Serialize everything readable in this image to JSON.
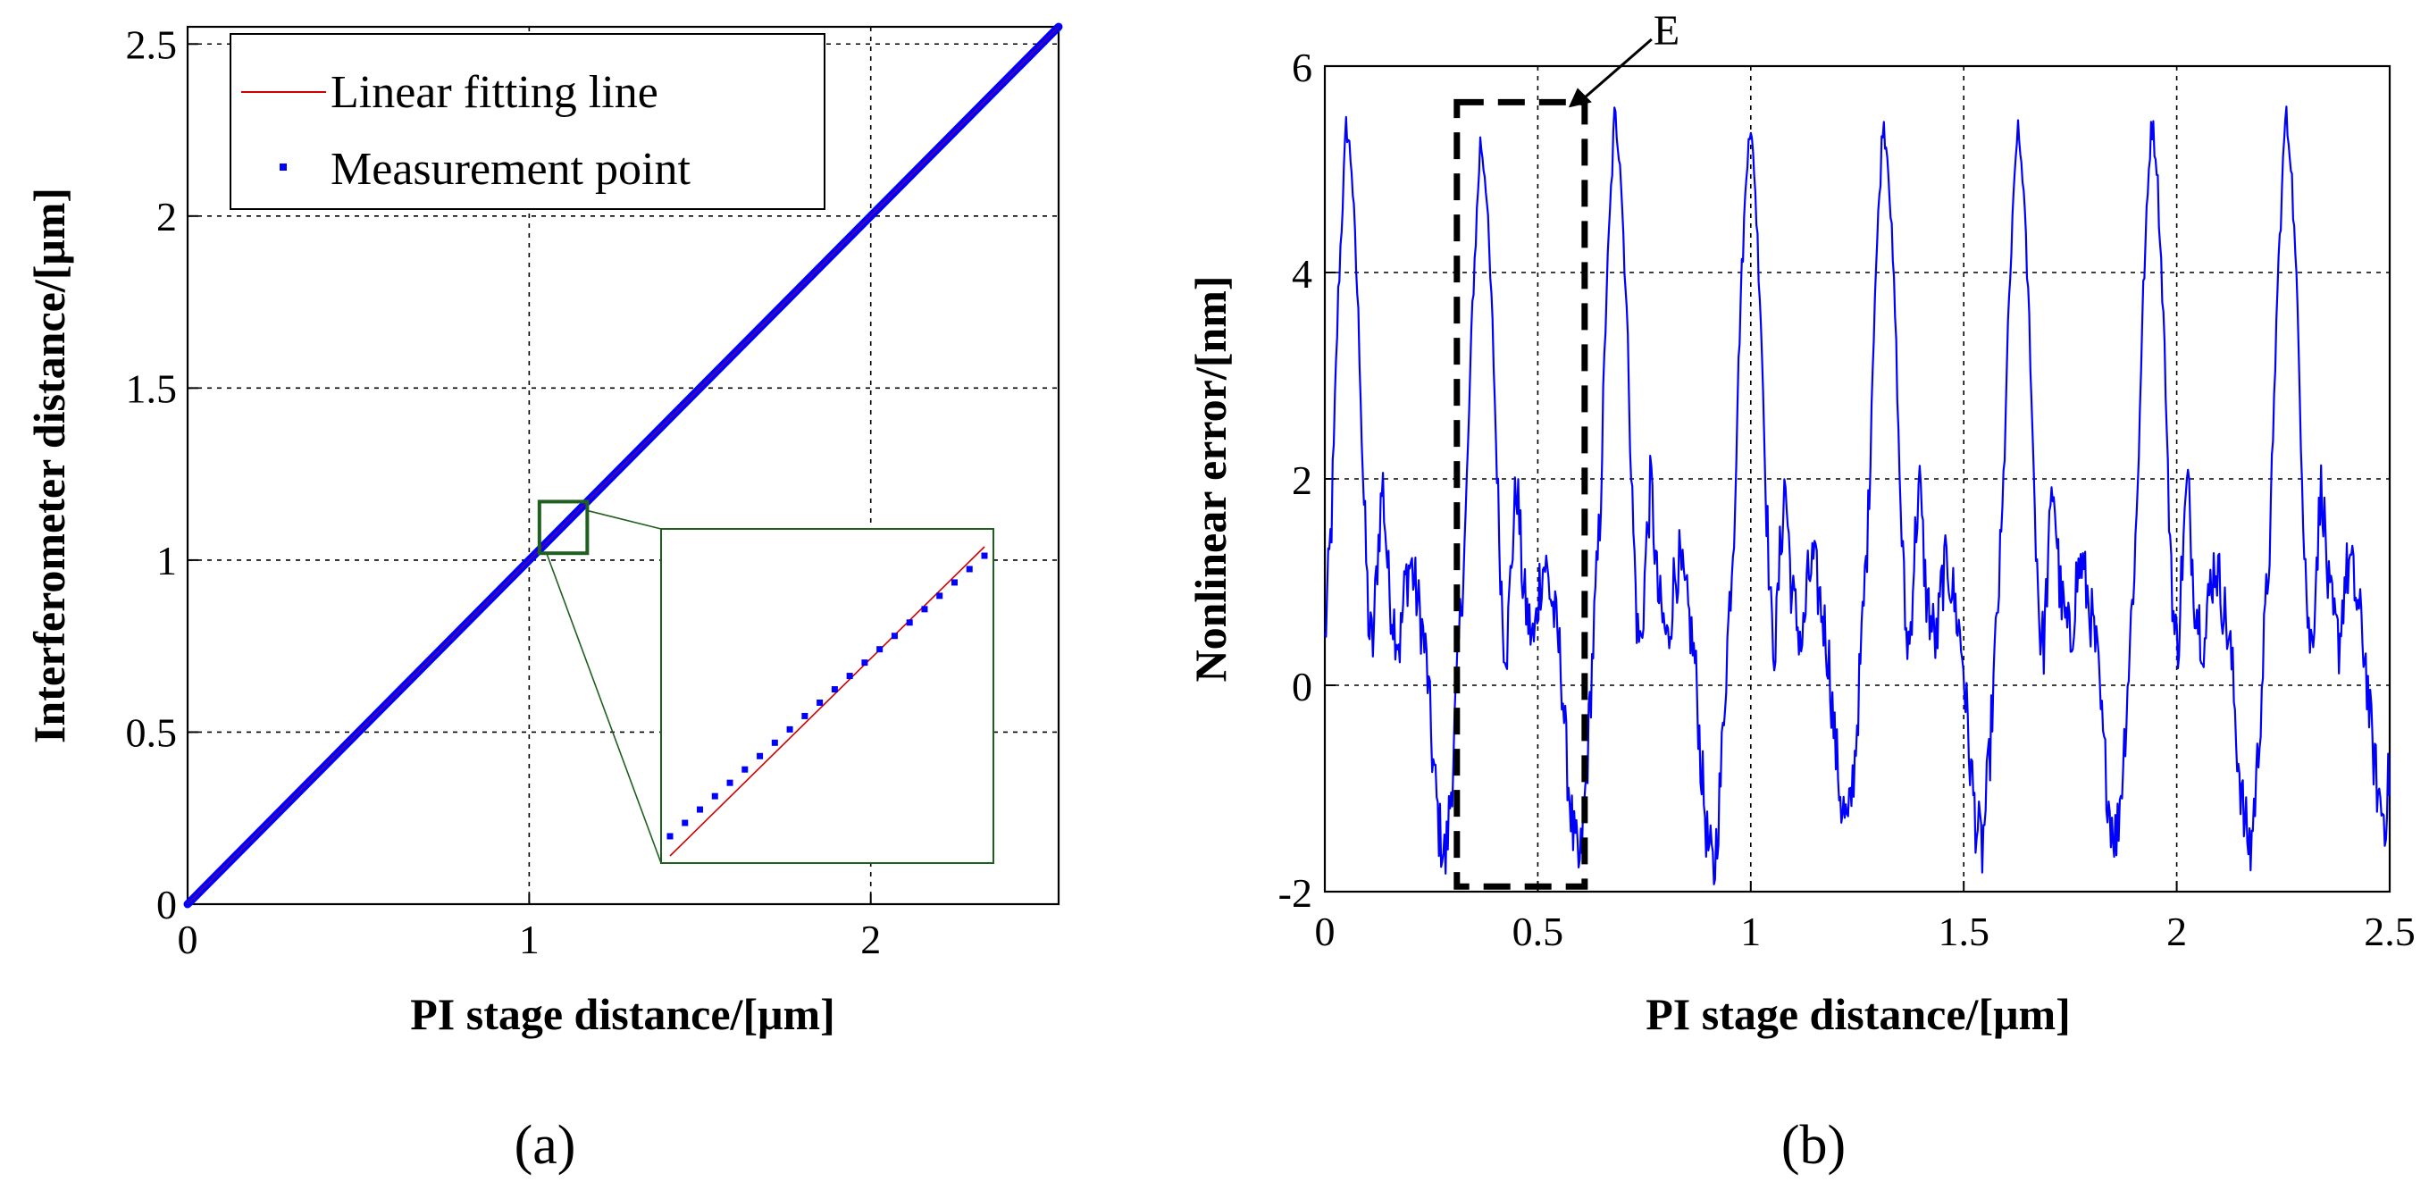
{
  "figure": {
    "panel_a_label": "(a)",
    "panel_b_label": "(b)"
  },
  "colors": {
    "series_blue": "#0000ff",
    "fit_red": "#d00000",
    "zoom_green": "#1f5f1f",
    "grid": "#000000",
    "annotation": "#000000"
  },
  "chart_data": [
    {
      "id": "a",
      "type": "scatter",
      "xlabel": "PI stage distance/[μm]",
      "ylabel": "Interferometer distance/[μm]",
      "xlim": [
        0,
        2.55
      ],
      "ylim": [
        0,
        2.55
      ],
      "xticks": [
        0,
        1,
        2
      ],
      "xtick_labels": [
        "0",
        "1",
        "2"
      ],
      "yticks": [
        0,
        0.5,
        1,
        1.5,
        2,
        2.5
      ],
      "ytick_labels": [
        "0",
        "0.5",
        "1",
        "1.5",
        "2",
        "2.5"
      ],
      "grid": true,
      "legend_position": "top-left",
      "series": [
        {
          "name": "Linear fitting line",
          "kind": "line",
          "color": "#d00000",
          "x": [
            0,
            2.55
          ],
          "y": [
            0,
            2.55
          ]
        },
        {
          "name": "Measurement point",
          "kind": "points",
          "color": "#0000ff",
          "x": [
            0,
            2.55
          ],
          "y": [
            0,
            2.55
          ]
        }
      ],
      "inset": {
        "description": "zoomed view",
        "source_x_range": [
          1.03,
          1.17
        ],
        "source_y_range": [
          1.02,
          1.17
        ],
        "fit_line": {
          "x": [
            0,
            1
          ],
          "y": [
            0,
            1
          ]
        },
        "measurement_points": {
          "x": [
            0,
            1
          ],
          "y": [
            0.03,
            0.97
          ],
          "count": 22
        }
      }
    },
    {
      "id": "b",
      "type": "line",
      "xlabel": "PI stage distance/[μm]",
      "ylabel": "Nonlinear error/[nm]",
      "xlim": [
        0,
        2.5
      ],
      "ylim": [
        -2,
        6
      ],
      "xticks": [
        0,
        0.5,
        1,
        1.5,
        2,
        2.5
      ],
      "xtick_labels": [
        "0",
        "0.5",
        "1",
        "1.5",
        "2",
        "2.5"
      ],
      "yticks": [
        -2,
        0,
        2,
        4,
        6
      ],
      "ytick_labels": [
        "-2",
        "0",
        "2",
        "4",
        "6"
      ],
      "grid": true,
      "series": [
        {
          "name": "Nonlinear error",
          "color": "#0000ff",
          "period_um": 0.315,
          "points_per_period": 120,
          "cycles": 8,
          "cycle_shape": {
            "x": [
              0,
              0.05,
              0.1,
              0.16,
              0.2,
              0.25,
              0.29,
              0.33,
              0.36,
              0.39,
              0.43,
              0.48,
              0.52,
              0.56,
              0.6,
              0.64,
              0.68,
              0.72,
              0.76,
              0.8,
              0.85,
              0.9,
              0.95,
              1.0
            ],
            "y": [
              0.4,
              1.6,
              3.6,
              5.2,
              4.8,
              3.4,
              1.8,
              0.5,
              0.4,
              1.2,
              2.0,
              0.9,
              0.6,
              0.4,
              1.0,
              1.2,
              0.9,
              0.6,
              0.2,
              -0.6,
              -1.3,
              -1.6,
              -0.8,
              0.4
            ]
          },
          "peak_values": [
            5.45,
            5.3,
            5.55,
            5.45,
            5.5,
            5.4,
            5.5,
            5.55
          ],
          "min_values": [
            -1.7,
            -1.8,
            -1.85,
            -1.4,
            -1.6,
            -1.5,
            -1.6,
            -1.3
          ],
          "noise_nm": 0.15
        }
      ],
      "annotation": {
        "label": "E",
        "box_x_range": [
          0.31,
          0.61
        ],
        "box_y_range": [
          -1.95,
          5.65
        ]
      }
    }
  ]
}
